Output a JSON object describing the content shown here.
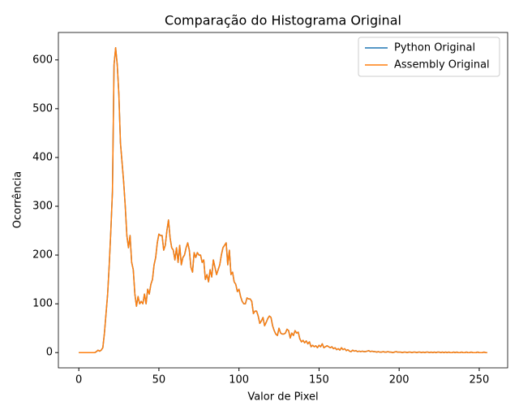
{
  "chart_data": {
    "type": "line",
    "title": "Comparação do Histograma Original",
    "xlabel": "Valor de Pixel",
    "ylabel": "Ocorrência",
    "xlim": [
      -12.75,
      267.75
    ],
    "ylim": [
      -31.25,
      656.25
    ],
    "xticks": [
      0,
      50,
      100,
      150,
      200,
      250
    ],
    "yticks": [
      0,
      100,
      200,
      300,
      400,
      500,
      600
    ],
    "grid": false,
    "legend": "upper right",
    "x": [
      0,
      1,
      2,
      3,
      4,
      5,
      6,
      7,
      8,
      9,
      10,
      11,
      12,
      13,
      14,
      15,
      16,
      17,
      18,
      19,
      20,
      21,
      22,
      23,
      24,
      25,
      26,
      27,
      28,
      29,
      30,
      31,
      32,
      33,
      34,
      35,
      36,
      37,
      38,
      39,
      40,
      41,
      42,
      43,
      44,
      45,
      46,
      47,
      48,
      49,
      50,
      51,
      52,
      53,
      54,
      55,
      56,
      57,
      58,
      59,
      60,
      61,
      62,
      63,
      64,
      65,
      66,
      67,
      68,
      69,
      70,
      71,
      72,
      73,
      74,
      75,
      76,
      77,
      78,
      79,
      80,
      81,
      82,
      83,
      84,
      85,
      86,
      87,
      88,
      89,
      90,
      91,
      92,
      93,
      94,
      95,
      96,
      97,
      98,
      99,
      100,
      101,
      102,
      103,
      104,
      105,
      106,
      107,
      108,
      109,
      110,
      111,
      112,
      113,
      114,
      115,
      116,
      117,
      118,
      119,
      120,
      121,
      122,
      123,
      124,
      125,
      126,
      127,
      128,
      129,
      130,
      131,
      132,
      133,
      134,
      135,
      136,
      137,
      138,
      139,
      140,
      141,
      142,
      143,
      144,
      145,
      146,
      147,
      148,
      149,
      150,
      151,
      152,
      153,
      154,
      155,
      156,
      157,
      158,
      159,
      160,
      161,
      162,
      163,
      164,
      165,
      166,
      167,
      168,
      169,
      170,
      171,
      172,
      173,
      174,
      175,
      176,
      177,
      178,
      179,
      180,
      181,
      182,
      183,
      184,
      185,
      186,
      187,
      188,
      189,
      190,
      191,
      192,
      193,
      194,
      195,
      196,
      197,
      198,
      199,
      200,
      201,
      202,
      203,
      204,
      205,
      206,
      207,
      208,
      209,
      210,
      211,
      212,
      213,
      214,
      215,
      216,
      217,
      218,
      219,
      220,
      221,
      222,
      223,
      224,
      225,
      226,
      227,
      228,
      229,
      230,
      231,
      232,
      233,
      234,
      235,
      236,
      237,
      238,
      239,
      240,
      241,
      242,
      243,
      244,
      245,
      246,
      247,
      248,
      249,
      250,
      251,
      252,
      253,
      254,
      255
    ],
    "series": [
      {
        "name": "Python Original",
        "color": "#1f77b4",
        "values": [
          0,
          0,
          0,
          0,
          0,
          0,
          0,
          0,
          0,
          0,
          0,
          2,
          5,
          3,
          5,
          10,
          40,
          80,
          120,
          180,
          250,
          330,
          590,
          625,
          590,
          530,
          430,
          390,
          350,
          300,
          240,
          215,
          240,
          185,
          170,
          120,
          95,
          115,
          100,
          105,
          100,
          120,
          100,
          130,
          120,
          140,
          150,
          180,
          195,
          225,
          243,
          240,
          240,
          210,
          220,
          250,
          272,
          235,
          215,
          210,
          190,
          215,
          185,
          220,
          180,
          195,
          200,
          215,
          225,
          210,
          175,
          165,
          205,
          195,
          205,
          200,
          200,
          185,
          190,
          150,
          160,
          145,
          170,
          155,
          190,
          175,
          160,
          170,
          180,
          200,
          215,
          220,
          225,
          180,
          210,
          160,
          165,
          145,
          140,
          125,
          130,
          115,
          105,
          100,
          100,
          112,
          110,
          110,
          105,
          80,
          85,
          85,
          75,
          60,
          65,
          72,
          55,
          62,
          70,
          75,
          72,
          55,
          45,
          38,
          35,
          50,
          40,
          38,
          38,
          40,
          48,
          45,
          30,
          40,
          35,
          45,
          40,
          42,
          28,
          22,
          25,
          20,
          24,
          18,
          22,
          12,
          15,
          12,
          14,
          10,
          15,
          12,
          18,
          10,
          12,
          14,
          12,
          10,
          12,
          8,
          10,
          6,
          8,
          5,
          10,
          6,
          8,
          4,
          6,
          3,
          2,
          5,
          3,
          4,
          2,
          3,
          2,
          3,
          2,
          2,
          3,
          4,
          2,
          3,
          2,
          2,
          1,
          2,
          1,
          1,
          2,
          1,
          1,
          2,
          1,
          1,
          0,
          1,
          2,
          1,
          1,
          1,
          0,
          1,
          1,
          0,
          1,
          1,
          0,
          1,
          1,
          0,
          1,
          1,
          0,
          1,
          0,
          1,
          1,
          0,
          1,
          0,
          1,
          0,
          1,
          1,
          0,
          1,
          0,
          1,
          0,
          1,
          0,
          0,
          1,
          0,
          1,
          0,
          0,
          1,
          0,
          0,
          1,
          0,
          0,
          1,
          0,
          0,
          0,
          1,
          0,
          0,
          0,
          1,
          0,
          0
        ]
      },
      {
        "name": "Assembly Original",
        "color": "#ff7f0e",
        "values": [
          0,
          0,
          0,
          0,
          0,
          0,
          0,
          0,
          0,
          0,
          0,
          2,
          5,
          3,
          5,
          10,
          40,
          80,
          120,
          180,
          250,
          330,
          590,
          625,
          590,
          530,
          430,
          390,
          350,
          300,
          240,
          215,
          240,
          185,
          170,
          120,
          95,
          115,
          100,
          105,
          100,
          120,
          100,
          130,
          120,
          140,
          150,
          180,
          195,
          225,
          243,
          240,
          240,
          210,
          220,
          250,
          272,
          235,
          215,
          210,
          190,
          215,
          185,
          220,
          180,
          195,
          200,
          215,
          225,
          210,
          175,
          165,
          205,
          195,
          205,
          200,
          200,
          185,
          190,
          150,
          160,
          145,
          170,
          155,
          190,
          175,
          160,
          170,
          180,
          200,
          215,
          220,
          225,
          180,
          210,
          160,
          165,
          145,
          140,
          125,
          130,
          115,
          105,
          100,
          100,
          112,
          110,
          110,
          105,
          80,
          85,
          85,
          75,
          60,
          65,
          72,
          55,
          62,
          70,
          75,
          72,
          55,
          45,
          38,
          35,
          50,
          40,
          38,
          38,
          40,
          48,
          45,
          30,
          40,
          35,
          45,
          40,
          42,
          28,
          22,
          25,
          20,
          24,
          18,
          22,
          12,
          15,
          12,
          14,
          10,
          15,
          12,
          18,
          10,
          12,
          14,
          12,
          10,
          12,
          8,
          10,
          6,
          8,
          5,
          10,
          6,
          8,
          4,
          6,
          3,
          2,
          5,
          3,
          4,
          2,
          3,
          2,
          3,
          2,
          2,
          3,
          4,
          2,
          3,
          2,
          2,
          1,
          2,
          1,
          1,
          2,
          1,
          1,
          2,
          1,
          1,
          0,
          1,
          2,
          1,
          1,
          1,
          0,
          1,
          1,
          0,
          1,
          1,
          0,
          1,
          1,
          0,
          1,
          1,
          0,
          1,
          0,
          1,
          1,
          0,
          1,
          0,
          1,
          0,
          1,
          1,
          0,
          1,
          0,
          1,
          0,
          1,
          0,
          0,
          1,
          0,
          1,
          0,
          0,
          1,
          0,
          0,
          1,
          0,
          0,
          1,
          0,
          0,
          0,
          1,
          0,
          0,
          0,
          1,
          0,
          0
        ]
      }
    ]
  }
}
